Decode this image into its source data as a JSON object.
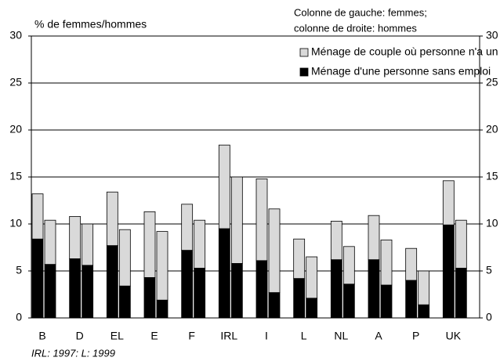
{
  "chart_data": {
    "type": "paired_stacked_bar",
    "y_label": "% de femmes/hommes",
    "note": [
      "Colonne de gauche: femmes;",
      "colonne de droite: hommes"
    ],
    "footnote": "IRL: 1997: L: 1999",
    "categories": [
      "B",
      "D",
      "EL",
      "E",
      "F",
      "IRL",
      "I",
      "L",
      "NL",
      "A",
      "P",
      "UK"
    ],
    "series": [
      {
        "name": "Ménage d'une personne sans emploi",
        "color": "#000000",
        "values": [
          [
            8.4,
            5.7
          ],
          [
            6.3,
            5.6
          ],
          [
            7.7,
            3.4
          ],
          [
            4.3,
            1.9
          ],
          [
            7.2,
            5.3
          ],
          [
            9.5,
            5.8
          ],
          [
            6.1,
            2.7
          ],
          [
            4.2,
            2.1
          ],
          [
            6.2,
            3.6
          ],
          [
            6.2,
            3.5
          ],
          [
            4.0,
            1.4
          ],
          [
            9.9,
            5.3
          ]
        ]
      },
      {
        "name": "Ménage de couple où personne n'a un emploi",
        "color": "#d9d9d9",
        "values": [
          [
            4.8,
            4.7
          ],
          [
            4.5,
            4.4
          ],
          [
            5.7,
            6.0
          ],
          [
            7.0,
            7.3
          ],
          [
            4.9,
            5.1
          ],
          [
            8.9,
            9.2
          ],
          [
            8.7,
            8.9
          ],
          [
            4.2,
            4.4
          ],
          [
            4.1,
            4.0
          ],
          [
            4.7,
            4.8
          ],
          [
            3.4,
            3.6
          ],
          [
            4.7,
            5.1
          ]
        ]
      }
    ],
    "ylim": [
      0,
      30
    ],
    "yticks": [
      0,
      5,
      10,
      15,
      20,
      25,
      30
    ],
    "y2lim": [
      0,
      30
    ],
    "y2ticks": [
      0,
      5,
      10,
      15,
      20,
      25,
      30
    ],
    "grid": true
  }
}
